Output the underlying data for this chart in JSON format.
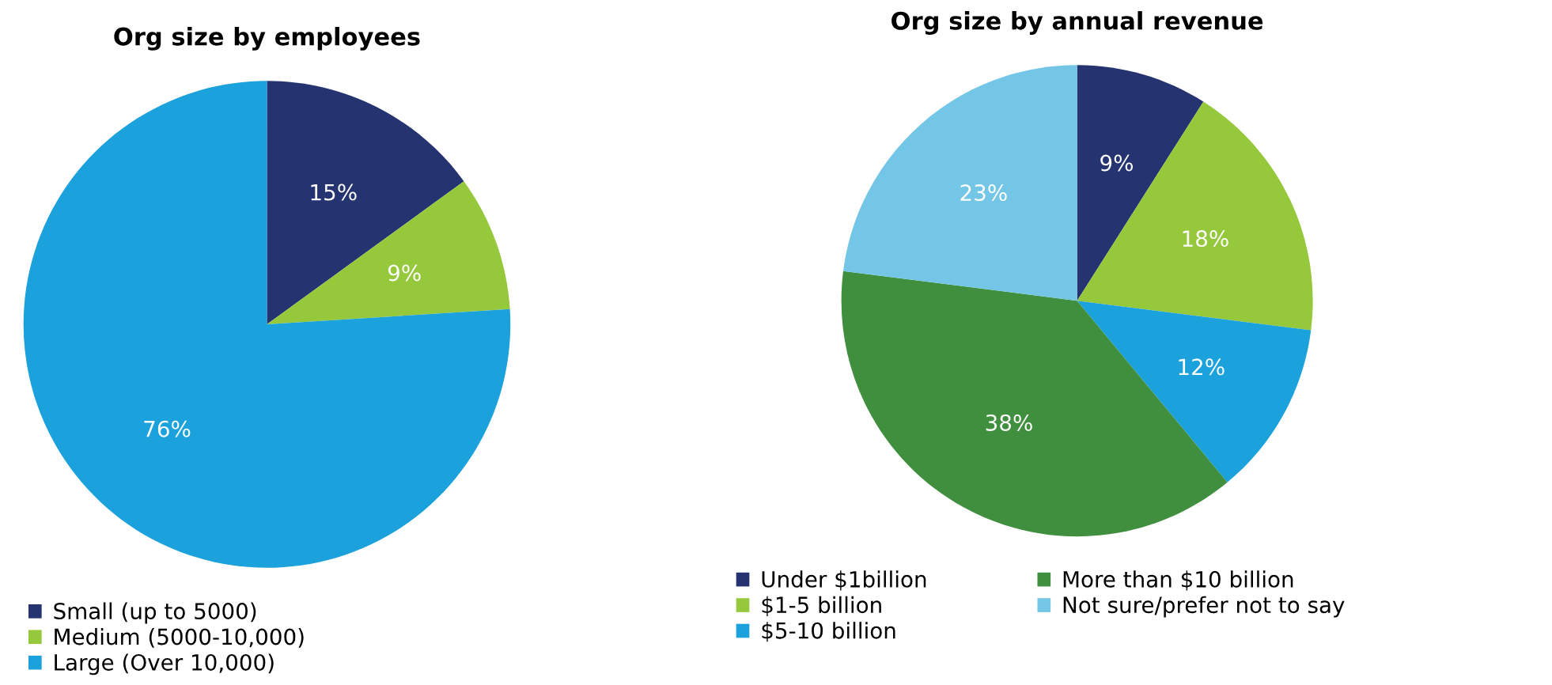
{
  "chart_data": [
    {
      "type": "pie",
      "title": "Org size by employees",
      "categories": [
        "Small (up to 5000)",
        "Medium (5000-10,000)",
        "Large (Over 10,000)"
      ],
      "values": [
        15,
        9,
        76
      ],
      "value_labels": [
        "15%",
        "9%",
        "76%"
      ],
      "colors": [
        "#253370",
        "#96c83c",
        "#1ba1dc"
      ],
      "legend": "bottom"
    },
    {
      "type": "pie",
      "title": "Org size by annual revenue",
      "categories": [
        "Under $1billion",
        "$1-5 billion",
        "$5-10 billion",
        "More than $10 billion",
        "Not sure/prefer not to say"
      ],
      "values": [
        9,
        18,
        12,
        38,
        23
      ],
      "value_labels": [
        "9%",
        "18%",
        "12%",
        "38%",
        "23%"
      ],
      "colors": [
        "#253370",
        "#96c83c",
        "#1ba1dc",
        "#3f8f3f",
        "#73c6e6"
      ],
      "legend": "bottom"
    }
  ]
}
